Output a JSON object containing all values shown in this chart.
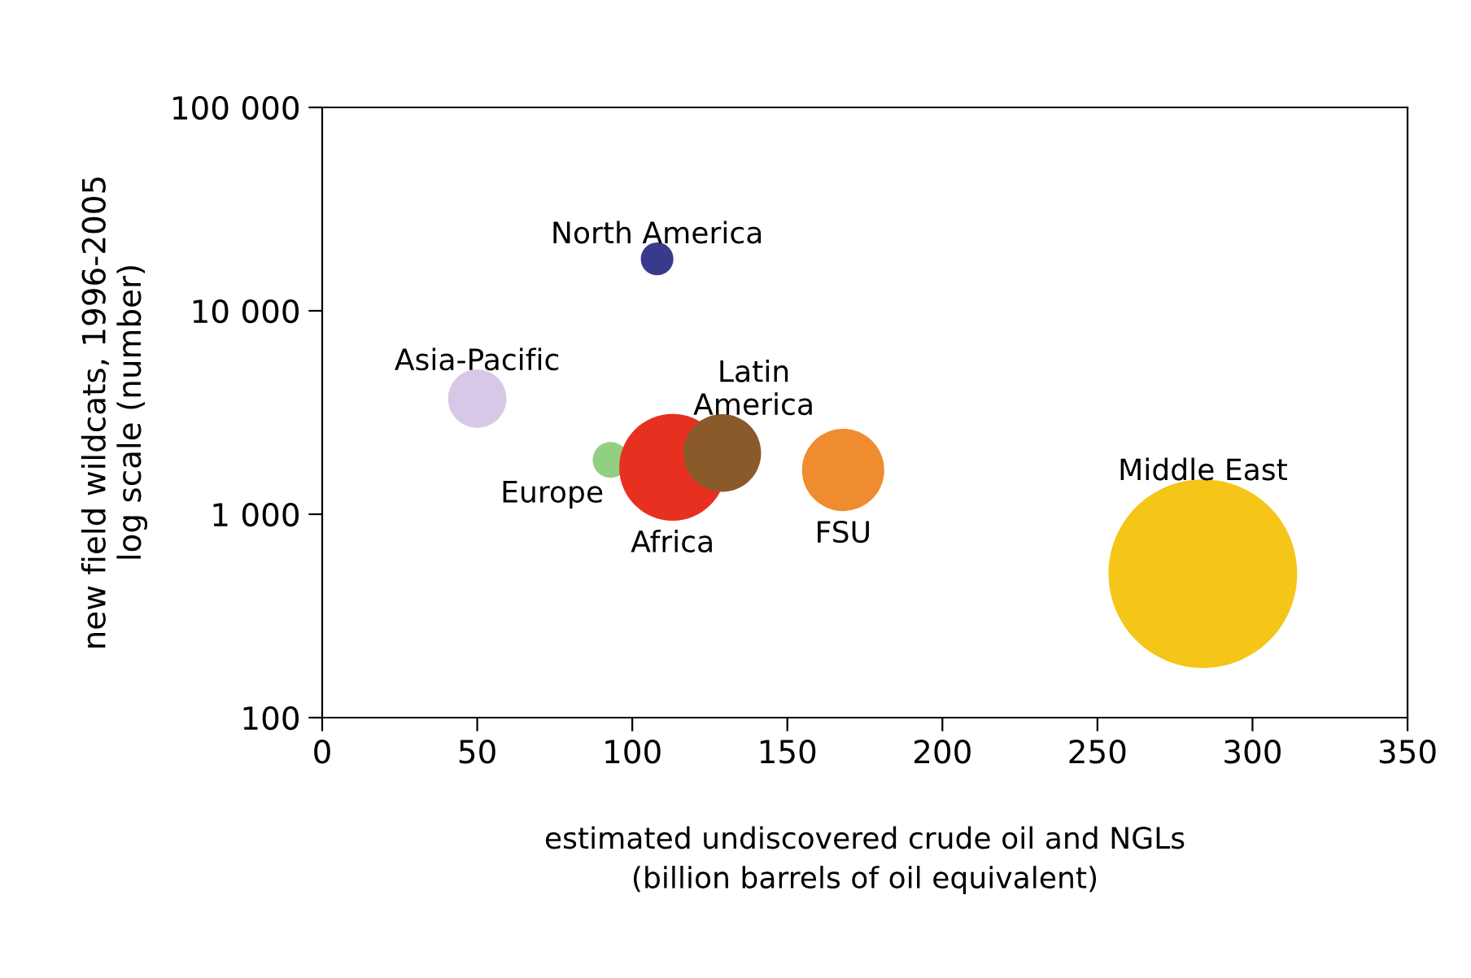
{
  "chart_data": {
    "type": "bubble",
    "xlabel": "estimated undiscovered crude oil and NGLs\n(billion barrels of oil equivalent)",
    "ylabel": "new field wildcats, 1996-2005\nlog scale (number)",
    "log": "y",
    "xlim": [
      0,
      350
    ],
    "xticks": [
      0,
      50,
      100,
      150,
      200,
      250,
      300,
      350
    ],
    "ylim": [
      100,
      100000
    ],
    "yticks": [
      {
        "value": 100,
        "label": "100"
      },
      {
        "value": 1000,
        "label": "1 000"
      },
      {
        "value": 10000,
        "label": "10 000"
      },
      {
        "value": 100000,
        "label": "100 000"
      }
    ],
    "grid": false,
    "legend": false,
    "series": [
      {
        "name": "North America",
        "color": "#3a3a8c",
        "x": [
          108
        ],
        "values": [
          18000
        ],
        "sizes": [
          0.03
        ]
      },
      {
        "name": "Asia-Pacific",
        "color": "#d8c8e8",
        "x": [
          50
        ],
        "values": [
          3700
        ],
        "sizes": [
          0.096
        ]
      },
      {
        "name": "Europe",
        "color": "#90d080",
        "x": [
          93
        ],
        "values": [
          1850
        ],
        "sizes": [
          0.036
        ]
      },
      {
        "name": "Africa",
        "color": "#e83020",
        "x": [
          113
        ],
        "values": [
          1700
        ],
        "sizes": [
          0.32
        ]
      },
      {
        "name": "Latin\nAmerica",
        "color": "#8b5a2b",
        "x": [
          129
        ],
        "values": [
          2000
        ],
        "sizes": [
          0.17
        ]
      },
      {
        "name": "FSU",
        "color": "#f08c30",
        "x": [
          168
        ],
        "values": [
          1650
        ],
        "sizes": [
          0.19
        ]
      },
      {
        "name": "Middle East",
        "color": "#f5c518",
        "x": [
          284
        ],
        "values": [
          510
        ],
        "sizes": [
          1.0
        ]
      }
    ]
  }
}
